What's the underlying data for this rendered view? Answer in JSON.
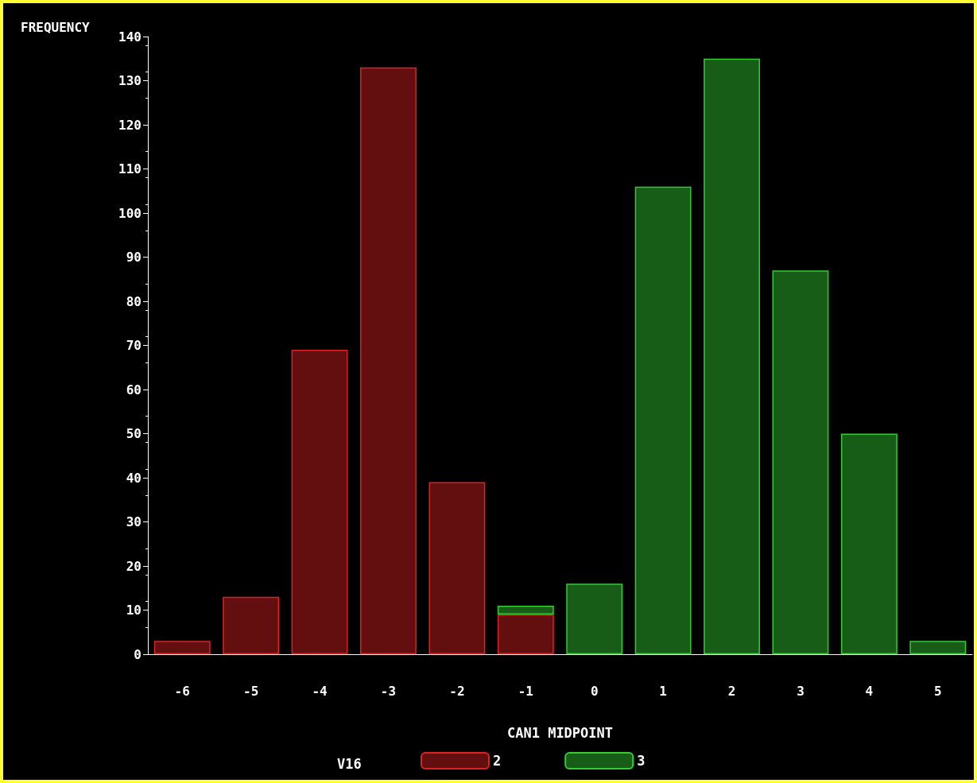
{
  "chart_data": {
    "type": "bar",
    "stacked": true,
    "xlabel": "CAN1 MIDPOINT",
    "ylabel": "FREQUENCY",
    "legend_title": "V16",
    "legend": "bottom",
    "grid": false,
    "categories": [
      "-6",
      "-5",
      "-4",
      "-3",
      "-2",
      "-1",
      "0",
      "1",
      "2",
      "3",
      "4",
      "5"
    ],
    "series": [
      {
        "name": "2",
        "color": "#dd2222",
        "values": [
          3,
          13,
          69,
          133,
          39,
          9,
          null,
          null,
          null,
          null,
          null,
          null
        ]
      },
      {
        "name": "3",
        "color": "#33cc33",
        "values": [
          null,
          null,
          null,
          null,
          null,
          2,
          16,
          106,
          135,
          87,
          50,
          3
        ]
      }
    ],
    "ylim": [
      0,
      140
    ],
    "yticks": [
      0,
      10,
      20,
      30,
      40,
      50,
      60,
      70,
      80,
      90,
      100,
      110,
      120,
      130,
      140
    ]
  }
}
